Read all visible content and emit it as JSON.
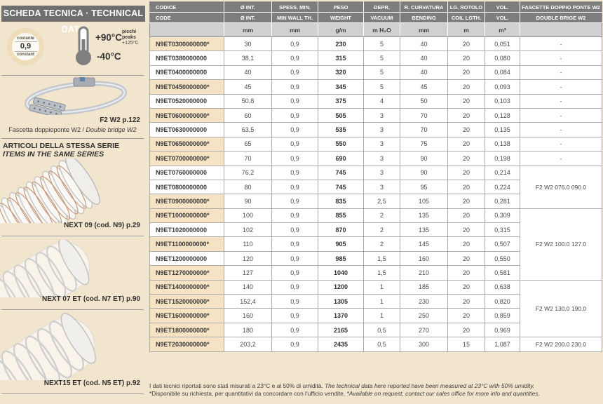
{
  "page": {
    "background": "#f2e5cd",
    "highlight_beige": "#f5e3c3",
    "title_bar_gray": "#6f6f6f",
    "table_header_gray": "#7d7d7d"
  },
  "sidebar": {
    "title": "SCHEDA TECNICA · TECHNICAL DATA",
    "constant_badge": {
      "label_it": "costante",
      "value": "0,9",
      "label_en": "constant"
    },
    "temperature": {
      "max": "+90°C",
      "min": "-40°C",
      "peaks_it": "picchi",
      "peaks_en": "peaks",
      "peaks_value": "+125°C"
    },
    "clamp": {
      "ref": "F2 W2 p.122",
      "caption_it": "Fascetta doppioponte W2",
      "caption_sep": " / ",
      "caption_en": "Double bridge W2"
    },
    "series": {
      "heading_it": "ARTICOLI DELLA STESSA SERIE",
      "heading_en": "ITEMS IN THE SAME SERIES"
    },
    "products": [
      {
        "label": "NEXT 09 (cod. N9) p.29"
      },
      {
        "label": "NEXT 07 ET (cod. N7 ET) p.90"
      },
      {
        "label": "NEXT15 ET (cod. N5 ET) p.92"
      }
    ]
  },
  "table": {
    "columns": [
      {
        "it": "CODICE",
        "en": "CODE",
        "unit": ""
      },
      {
        "it": "Ø INT.",
        "en": "Ø INT.",
        "unit": "mm"
      },
      {
        "it": "SPESS. MIN.",
        "en": "MIN WALL TH.",
        "unit": "mm"
      },
      {
        "it": "PESO",
        "en": "WEIGHT",
        "unit": "g/m"
      },
      {
        "it": "DEPR.",
        "en": "VACUUM",
        "unit": "m H₂O"
      },
      {
        "it": "R. CURVATURA",
        "en": "BENDING",
        "unit": "mm"
      },
      {
        "it": "LG. ROTOLO",
        "en": "COIL LGTH.",
        "unit": "m"
      },
      {
        "it": "VOL.",
        "en": "VOL.",
        "unit": "m³"
      },
      {
        "it": "FASCETTE DOPPIO PONTE W2",
        "en": "DOUBLE BRIGE W2",
        "unit": ""
      }
    ],
    "rows": [
      {
        "code": "N9ET0300000000*",
        "highlight": true,
        "values": [
          "30",
          "0,9",
          "230",
          "5",
          "40",
          "20",
          "0,051"
        ],
        "clamp": {
          "text": "-",
          "span": 1
        }
      },
      {
        "code": "N9ET0380000000",
        "highlight": false,
        "values": [
          "38,1",
          "0,9",
          "315",
          "5",
          "40",
          "20",
          "0,080"
        ],
        "clamp": {
          "text": "-",
          "span": 1
        }
      },
      {
        "code": "N9ET0400000000",
        "highlight": false,
        "values": [
          "40",
          "0,9",
          "320",
          "5",
          "40",
          "20",
          "0,084"
        ],
        "clamp": {
          "text": "-",
          "span": 1
        }
      },
      {
        "code": "N9ET0450000000*",
        "highlight": true,
        "values": [
          "45",
          "0,9",
          "345",
          "5",
          "45",
          "20",
          "0,093"
        ],
        "clamp": {
          "text": "-",
          "span": 1
        }
      },
      {
        "code": "N9ET0520000000",
        "highlight": false,
        "values": [
          "50,8",
          "0,9",
          "375",
          "4",
          "50",
          "20",
          "0,103"
        ],
        "clamp": {
          "text": "-",
          "span": 1
        }
      },
      {
        "code": "N9ET0600000000*",
        "highlight": true,
        "values": [
          "60",
          "0,9",
          "505",
          "3",
          "70",
          "20",
          "0,128"
        ],
        "clamp": {
          "text": "-",
          "span": 1
        }
      },
      {
        "code": "N9ET0630000000",
        "highlight": false,
        "values": [
          "63,5",
          "0,9",
          "535",
          "3",
          "70",
          "20",
          "0,135"
        ],
        "clamp": {
          "text": "-",
          "span": 1
        }
      },
      {
        "code": "N9ET0650000000*",
        "highlight": true,
        "values": [
          "65",
          "0,9",
          "550",
          "3",
          "75",
          "20",
          "0,138"
        ],
        "clamp": {
          "text": "-",
          "span": 1
        }
      },
      {
        "code": "N9ET0700000000*",
        "highlight": true,
        "values": [
          "70",
          "0,9",
          "690",
          "3",
          "90",
          "20",
          "0,198"
        ],
        "clamp": {
          "text": "-",
          "span": 1
        }
      },
      {
        "code": "N9ET0760000000",
        "highlight": false,
        "values": [
          "76,2",
          "0,9",
          "745",
          "3",
          "90",
          "20",
          "0,214"
        ],
        "clamp": {
          "text": "F2 W2 076.0 090.0",
          "span": 3
        }
      },
      {
        "code": "N9ET0800000000",
        "highlight": false,
        "values": [
          "80",
          "0,9",
          "745",
          "3",
          "95",
          "20",
          "0,224"
        ],
        "clamp": null
      },
      {
        "code": "N9ET0900000000*",
        "highlight": true,
        "values": [
          "90",
          "0,9",
          "835",
          "2,5",
          "105",
          "20",
          "0,281"
        ],
        "clamp": null
      },
      {
        "code": "N9ET1000000000*",
        "highlight": true,
        "values": [
          "100",
          "0,9",
          "855",
          "2",
          "135",
          "20",
          "0,309"
        ],
        "clamp": {
          "text": "F2 W2 100.0 127.0",
          "span": 5
        }
      },
      {
        "code": "N9ET1020000000",
        "highlight": false,
        "values": [
          "102",
          "0,9",
          "870",
          "2",
          "135",
          "20",
          "0,315"
        ],
        "clamp": null
      },
      {
        "code": "N9ET1100000000*",
        "highlight": true,
        "values": [
          "110",
          "0,9",
          "905",
          "2",
          "145",
          "20",
          "0,507"
        ],
        "clamp": null
      },
      {
        "code": "N9ET1200000000",
        "highlight": false,
        "values": [
          "120",
          "0,9",
          "985",
          "1,5",
          "160",
          "20",
          "0,550"
        ],
        "clamp": null
      },
      {
        "code": "N9ET1270000000*",
        "highlight": true,
        "values": [
          "127",
          "0,9",
          "1040",
          "1,5",
          "210",
          "20",
          "0,581"
        ],
        "clamp": null
      },
      {
        "code": "N9ET1400000000*",
        "highlight": true,
        "values": [
          "140",
          "0,9",
          "1200",
          "1",
          "185",
          "20",
          "0,638"
        ],
        "clamp": {
          "text": "F2 W2 130.0 190.0",
          "span": 4
        }
      },
      {
        "code": "N9ET1520000000*",
        "highlight": true,
        "values": [
          "152,4",
          "0,9",
          "1305",
          "1",
          "230",
          "20",
          "0,820"
        ],
        "clamp": null
      },
      {
        "code": "N9ET1600000000*",
        "highlight": true,
        "values": [
          "160",
          "0,9",
          "1370",
          "1",
          "250",
          "20",
          "0,859"
        ],
        "clamp": null
      },
      {
        "code": "N9ET1800000000*",
        "highlight": true,
        "values": [
          "180",
          "0,9",
          "2165",
          "0,5",
          "270",
          "20",
          "0,969"
        ],
        "clamp": null
      },
      {
        "code": "N9ET2030000000*",
        "highlight": true,
        "values": [
          "203,2",
          "0,9",
          "2435",
          "0,5",
          "300",
          "15",
          "1,087"
        ],
        "clamp": {
          "text": "F2 W2 200.0 230.0",
          "span": 1
        }
      }
    ]
  },
  "footer": {
    "line1_it": "I dati tecnici riportati sono stati misurati a 23°C e al 50% di umidità. ",
    "line1_en": "The technical data here reported have been measured at 23°C with 50% umidity.",
    "line2_it": "*Disponibile su richiesta, per quantitativi da concordare con l’ufficio vendite. ",
    "line2_en": "*Available on request, contact our sales office for more info and quantities."
  }
}
